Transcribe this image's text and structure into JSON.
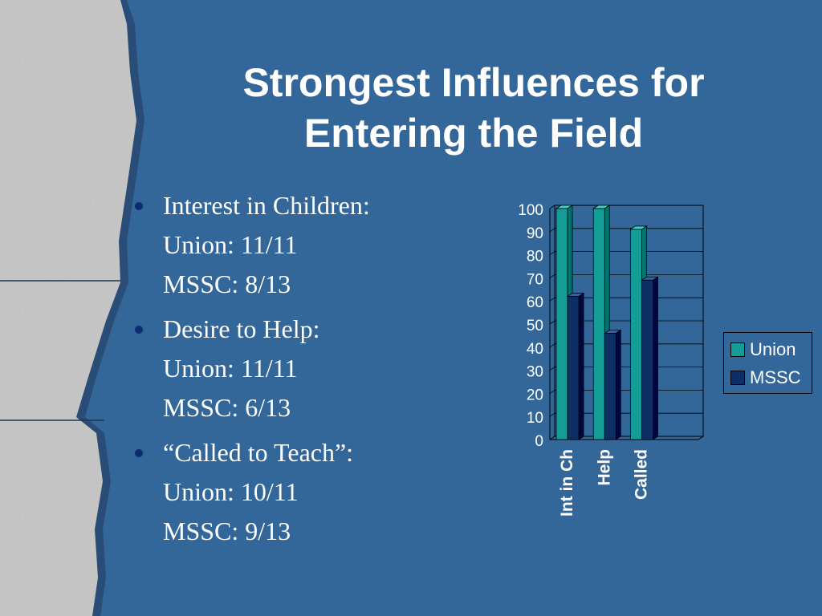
{
  "slide": {
    "title_lines": [
      "Strongest Influences for",
      "Entering the Field"
    ],
    "bullets": [
      {
        "heading": "Interest in Children:",
        "union": "Union:  11/11",
        "mssc": "MSSC:  8/13"
      },
      {
        "heading": "Desire to Help:",
        "union": "Union:  11/11",
        "mssc": "MSSC:  6/13"
      },
      {
        "heading": "“Called to Teach”:",
        "union": "Union:  10/11",
        "mssc": "MSSC:  9/13"
      }
    ]
  },
  "colors": {
    "background": "#336699",
    "union": "#149c96",
    "mssc": "#0d2f66",
    "bullet": "#0f2a70"
  },
  "chart_data": {
    "type": "bar",
    "categories": [
      "Int in Ch",
      "Help",
      "Called"
    ],
    "series": [
      {
        "name": "Union",
        "values": [
          100,
          100,
          91
        ]
      },
      {
        "name": "MSSC",
        "values": [
          62,
          46,
          69
        ]
      }
    ],
    "ylim": [
      0,
      100
    ],
    "yticks": [
      0,
      10,
      20,
      30,
      40,
      50,
      60,
      70,
      80,
      90,
      100
    ],
    "grid": true,
    "legend": "right"
  }
}
